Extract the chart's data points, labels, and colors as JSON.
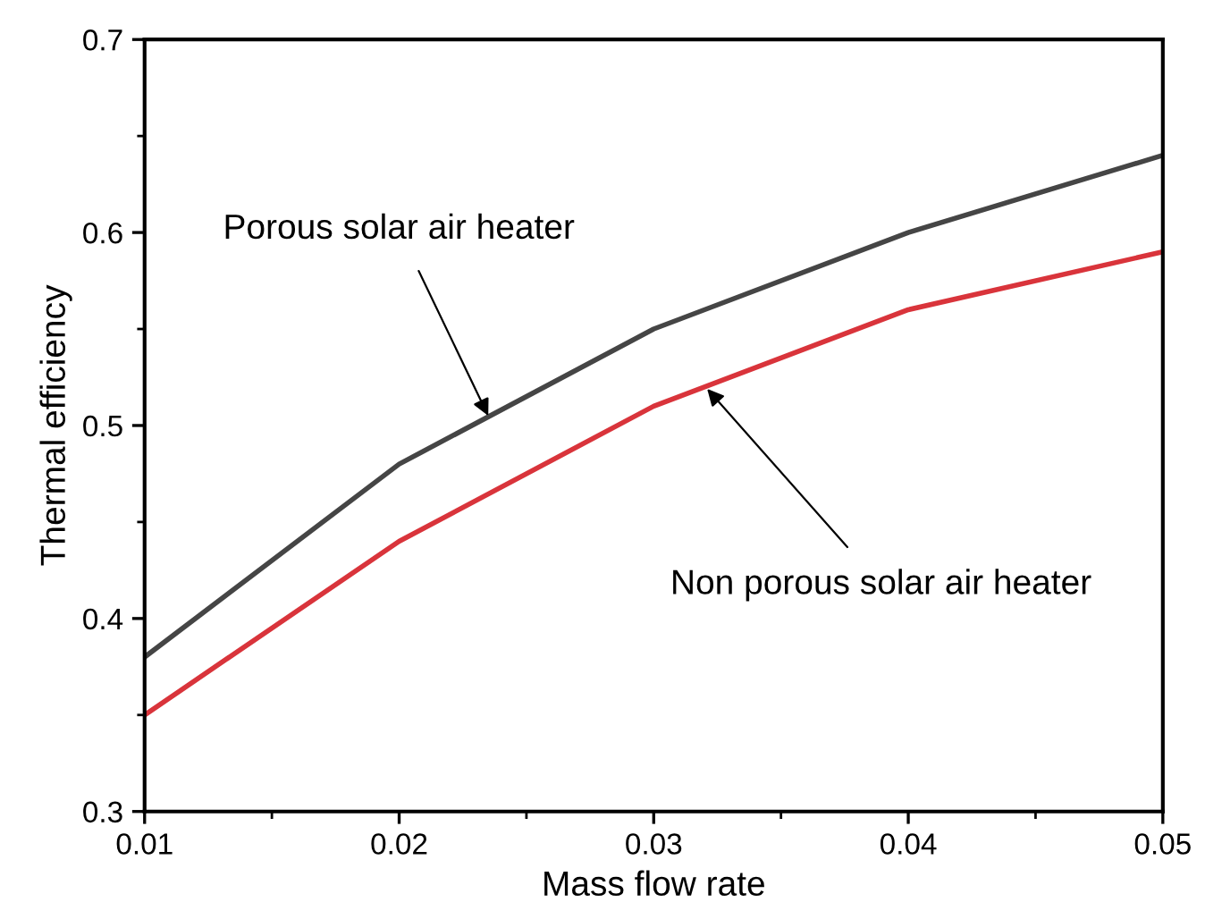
{
  "chart_data": {
    "type": "line",
    "xlabel": "Mass flow rate",
    "ylabel": "Thermal efficiency",
    "x": [
      0.01,
      0.02,
      0.03,
      0.04,
      0.05
    ],
    "series": [
      {
        "color": "#454545",
        "values": [
          0.38,
          0.48,
          0.55,
          0.6,
          0.64
        ]
      },
      {
        "color": "#d9343b",
        "values": [
          0.35,
          0.44,
          0.51,
          0.56,
          0.59
        ]
      }
    ],
    "xlim": [
      0.01,
      0.05
    ],
    "xticks": [
      0.01,
      0.02,
      0.03,
      0.04,
      0.05
    ],
    "ylim": [
      0.3,
      0.7
    ],
    "yticks": [
      0.3,
      0.4,
      0.5,
      0.6,
      0.7
    ],
    "grid": false,
    "legend": false,
    "marker": "none",
    "line_style": "solid",
    "annotations": [
      {
        "text": "Porous solar air heater",
        "x": 0.0235,
        "y": 0.505
      },
      {
        "text": "Non porous solar air heater",
        "x": 0.0321,
        "y": 0.519
      }
    ]
  }
}
